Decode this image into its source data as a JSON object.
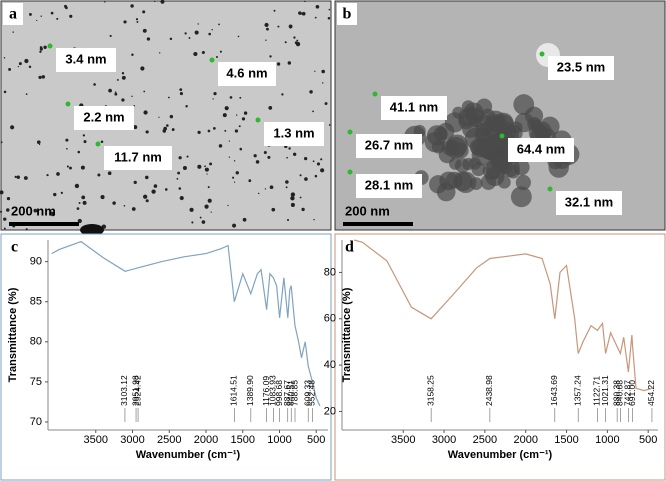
{
  "panels": [
    {
      "letter": "a",
      "scale_bar": "200 nm",
      "annotations": [
        "3.4 nm",
        "4.6 nm",
        "2.2 nm",
        "11.7 nm",
        "1.3 nm"
      ]
    },
    {
      "letter": "b",
      "scale_bar": "200 nm",
      "annotations": [
        "23.5 nm",
        "41.1 nm",
        "26.7 nm",
        "64.4 nm",
        "28.1 nm",
        "32.1 nm"
      ]
    }
  ],
  "chart_data": [
    {
      "type": "line",
      "panel_label": "c",
      "x_label": "Wavenumber (cm⁻¹)",
      "y_label": "Transmittance (%)",
      "color": "#7fa3c0",
      "x": [
        4100,
        4000,
        3700,
        3400,
        3100,
        2900,
        2600,
        2300,
        2000,
        1800,
        1700,
        1614.51,
        1500,
        1389.9,
        1300,
        1250,
        1176.09,
        1130,
        1083.93,
        1040,
        998.68,
        940,
        887.67,
        860,
        840.51,
        800,
        788.85,
        740,
        700,
        650,
        609.33,
        552.48,
        500,
        450
      ],
      "values": [
        91,
        91.5,
        92.5,
        90.5,
        88.8,
        89.3,
        90,
        90.6,
        91,
        91.6,
        92,
        85,
        88.5,
        86,
        88.5,
        89,
        84,
        88.5,
        88,
        87,
        83,
        88,
        83,
        86.5,
        87,
        83,
        82,
        80,
        78,
        80,
        77,
        75,
        73,
        72
      ],
      "xlim": [
        4150,
        340
      ],
      "ylim": [
        69,
        92.7
      ],
      "xticks": [
        3500,
        3000,
        2500,
        2000,
        1500,
        1000,
        500
      ],
      "yticks": [
        70,
        75,
        80,
        85,
        90
      ],
      "peaks": [
        3103.12,
        2951.98,
        2924.42,
        1614.51,
        {
          "value": 1389.9,
          "label": "1389.90"
        },
        1176.09,
        1083.93,
        998.68,
        887.67,
        840.51,
        788.85,
        609.33,
        552.48
      ]
    },
    {
      "type": "line",
      "panel_label": "d",
      "x_label": "Wavenumber (cm⁻¹)",
      "y_label": "Transmittance (%)",
      "color": "#c8967a",
      "x": [
        4100,
        4000,
        3700,
        3400,
        3158.25,
        2900,
        2600,
        2438.98,
        2000,
        1800,
        1700,
        1643.69,
        1580,
        1500,
        1400,
        1357.24,
        1300,
        1200,
        1122.71,
        1060,
        1021.31,
        960,
        880.38,
        840.68,
        800,
        742.87,
        700,
        691,
        650,
        550,
        454.22
      ],
      "values": [
        94,
        93,
        85,
        65,
        60,
        70,
        82,
        86,
        88,
        86,
        75,
        60,
        80,
        83,
        60,
        45,
        50,
        57,
        55,
        58,
        45,
        54,
        48,
        45,
        52,
        37,
        53,
        48,
        30,
        29,
        30
      ],
      "xlim": [
        4250,
        380
      ],
      "ylim": [
        12,
        94
      ],
      "xticks": [
        3500,
        3000,
        2500,
        2000,
        1500,
        1000,
        500
      ],
      "yticks": [
        20,
        40,
        60,
        80
      ],
      "peaks": [
        3158.25,
        2438.98,
        1643.69,
        1357.24,
        1122.71,
        1021.31,
        880.38,
        840.68,
        742.87,
        {
          "value": 691,
          "label": "691.00"
        },
        454.22
      ]
    }
  ]
}
